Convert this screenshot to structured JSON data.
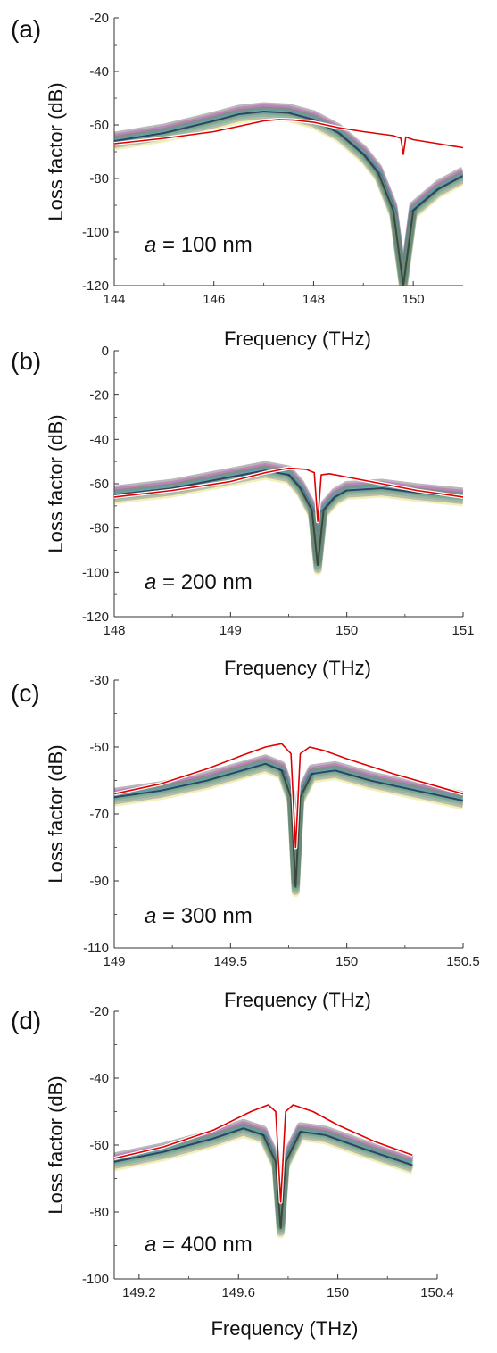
{
  "chart_data": [
    {
      "panel_label": "(a)",
      "type": "line",
      "xlabel": "Frequency (THz)",
      "ylabel": "Loss factor (dB)",
      "annotation_var": "a",
      "annotation_rest": " = 100 nm",
      "xlim": [
        144,
        151
      ],
      "ylim": [
        -120,
        -20
      ],
      "xticks": [
        144,
        146,
        148,
        150
      ],
      "yticks": [
        -20,
        -40,
        -60,
        -80,
        -100,
        -120
      ],
      "accent_color": "#e00000",
      "series": [
        {
          "x": [
            144,
            145,
            146,
            146.5,
            147,
            147.3,
            147.6,
            148,
            148.5,
            149,
            149.4,
            149.6,
            149.75,
            149.8,
            149.85,
            150,
            150.5,
            151
          ],
          "y": [
            -67,
            -65,
            -62.5,
            -60.5,
            -58.5,
            -58,
            -58.2,
            -59,
            -61,
            -62.5,
            -63.5,
            -64,
            -65,
            -71,
            -64.5,
            -65.5,
            -67,
            -68.5
          ]
        },
        {
          "x": [
            144,
            145,
            146,
            146.5,
            147,
            147.5,
            148,
            148.5,
            149,
            149.3,
            149.6,
            149.8,
            150,
            150.5,
            151
          ],
          "y": [
            -66,
            -63,
            -58.5,
            -56,
            -55,
            -55.5,
            -58,
            -63,
            -71,
            -78,
            -92,
            -120,
            -92,
            -84,
            -79
          ]
        }
      ]
    },
    {
      "panel_label": "(b)",
      "type": "line",
      "xlabel": "Frequency (THz)",
      "ylabel": "Loss factor (dB)",
      "annotation_var": "a",
      "annotation_rest": " = 200 nm",
      "xlim": [
        148,
        151
      ],
      "ylim": [
        -120,
        0
      ],
      "xticks": [
        148,
        149,
        150,
        151
      ],
      "yticks": [
        0,
        -20,
        -40,
        -60,
        -80,
        -100,
        -120
      ],
      "accent_color": "#e00000",
      "series": [
        {
          "x": [
            148,
            148.5,
            149,
            149.3,
            149.5,
            149.65,
            149.72,
            149.75,
            149.78,
            149.85,
            150,
            150.3,
            150.6,
            151
          ],
          "y": [
            -66,
            -63,
            -59,
            -55,
            -53,
            -53.5,
            -55,
            -77,
            -56,
            -55.5,
            -57,
            -60,
            -63,
            -66
          ]
        },
        {
          "x": [
            148,
            148.5,
            149,
            149.3,
            149.5,
            149.6,
            149.7,
            149.75,
            149.8,
            149.9,
            150,
            150.3,
            150.6,
            151
          ],
          "y": [
            -65,
            -62,
            -57,
            -54,
            -56,
            -62,
            -72,
            -97,
            -72,
            -66,
            -63,
            -62,
            -64,
            -66
          ]
        }
      ]
    },
    {
      "panel_label": "(c)",
      "type": "line",
      "xlabel": "Frequency (THz)",
      "ylabel": "Loss factor (dB)",
      "annotation_var": "a",
      "annotation_rest": " = 300 nm",
      "xlim": [
        149,
        150.5
      ],
      "ylim": [
        -110,
        -30
      ],
      "xticks": [
        149,
        149.5,
        150,
        150.5
      ],
      "xtick_labels": [
        "149",
        "149.5",
        "150",
        "150.5"
      ],
      "yticks": [
        -30,
        -50,
        -70,
        -90,
        -110
      ],
      "accent_color": "#e00000",
      "series": [
        {
          "x": [
            149,
            149.2,
            149.4,
            149.55,
            149.65,
            149.72,
            149.76,
            149.78,
            149.8,
            149.84,
            149.9,
            150,
            150.2,
            150.5
          ],
          "y": [
            -64,
            -61,
            -56.5,
            -52.5,
            -50,
            -49,
            -52,
            -80,
            -52,
            -50,
            -51,
            -53.5,
            -58,
            -64
          ]
        },
        {
          "x": [
            149,
            149.2,
            149.4,
            149.55,
            149.65,
            149.72,
            149.76,
            149.78,
            149.8,
            149.85,
            149.95,
            150.1,
            150.3,
            150.5
          ],
          "y": [
            -65,
            -63,
            -60,
            -57,
            -55,
            -57,
            -65,
            -92,
            -65,
            -58,
            -57,
            -60,
            -63,
            -66
          ]
        }
      ]
    },
    {
      "panel_label": "(d)",
      "type": "line",
      "xlabel": "Frequency (THz)",
      "ylabel": "Loss factor (dB)",
      "annotation_var": "a",
      "annotation_rest": " = 400 nm",
      "xlim": [
        149.1,
        150.4
      ],
      "ylim": [
        -100,
        -20
      ],
      "xticks": [
        149.2,
        149.6,
        150,
        150.4
      ],
      "xtick_labels": [
        "149.2",
        "149.6",
        "150",
        "150.4"
      ],
      "yticks": [
        -20,
        -40,
        -60,
        -80,
        -100
      ],
      "accent_color": "#e00000",
      "series": [
        {
          "x": [
            149.1,
            149.3,
            149.5,
            149.65,
            149.72,
            149.75,
            149.77,
            149.79,
            149.82,
            149.9,
            150,
            150.15,
            150.3
          ],
          "y": [
            -64,
            -60.5,
            -55.5,
            -50,
            -48,
            -50,
            -77,
            -50,
            -48,
            -50,
            -54,
            -59,
            -63
          ]
        },
        {
          "x": [
            149.1,
            149.3,
            149.5,
            149.62,
            149.7,
            149.75,
            149.77,
            149.79,
            149.85,
            149.95,
            150.1,
            150.3
          ],
          "y": [
            -65,
            -62,
            -58,
            -55,
            -57,
            -65,
            -85,
            -65,
            -56,
            -57,
            -61,
            -66
          ]
        }
      ]
    }
  ]
}
